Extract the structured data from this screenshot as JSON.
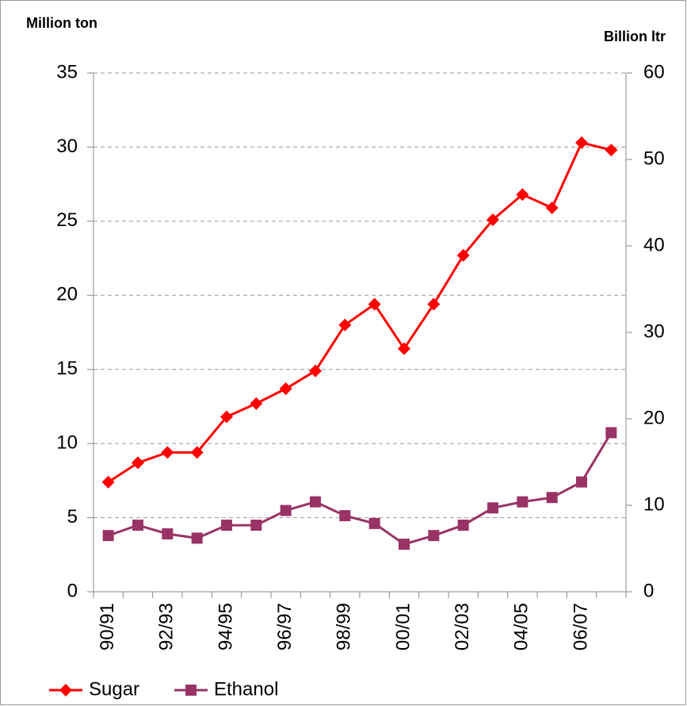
{
  "chart_data": {
    "type": "line",
    "y_label": "Million ton",
    "y2_label": "Billion ltr",
    "categories": [
      "90/91",
      null,
      "92/93",
      null,
      "94/95",
      null,
      "96/97",
      null,
      "98/99",
      null,
      "00/01",
      null,
      "02/03",
      null,
      "04/05",
      null,
      "06/07",
      null
    ],
    "series": [
      {
        "name": "Sugar",
        "color": "#ff0000",
        "marker": "diamond",
        "values": [
          7.4,
          8.7,
          9.4,
          9.4,
          11.8,
          12.7,
          13.7,
          14.9,
          18.0,
          19.4,
          16.4,
          19.4,
          22.7,
          25.1,
          26.8,
          25.9,
          30.3,
          29.8
        ]
      },
      {
        "name": "Ethanol",
        "color": "#993366",
        "marker": "square",
        "axis": "y2",
        "values": [
          6.5,
          7.7,
          6.7,
          6.2,
          7.7,
          7.7,
          9.4,
          10.4,
          8.8,
          7.9,
          5.5,
          6.5,
          7.7,
          9.7,
          10.4,
          10.9,
          12.7,
          18.4
        ]
      }
    ],
    "ylim": [
      0,
      35
    ],
    "yticks": [
      0,
      5,
      10,
      15,
      20,
      25,
      30,
      35
    ],
    "y2lim": [
      0,
      60
    ],
    "y2ticks": [
      0,
      10,
      20,
      30,
      40,
      50,
      60
    ],
    "grid": true,
    "legend": "bottom-left"
  }
}
